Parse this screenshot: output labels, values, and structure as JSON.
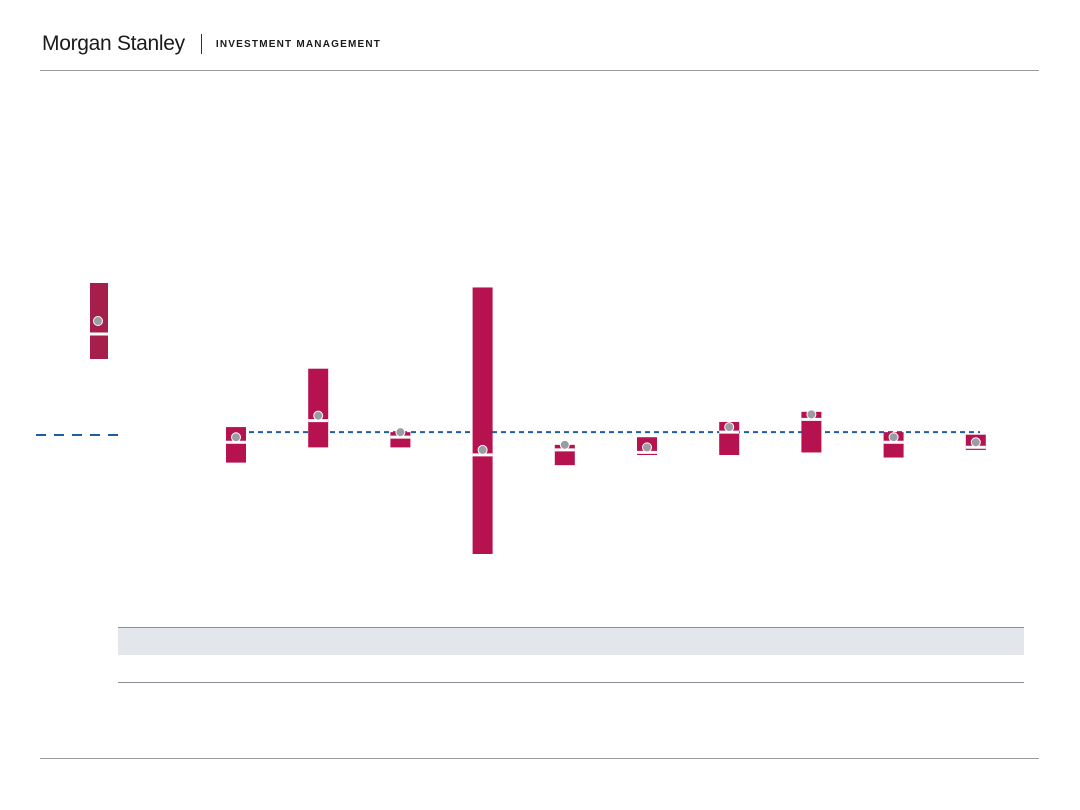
{
  "header": {
    "brand_name": "Morgan Stanley",
    "division": "INVESTMENT MANAGEMENT"
  },
  "colors": {
    "bar": "#b5124f",
    "legend_bar": "#a61f4a",
    "marker_fill": "#9a9da3",
    "marker_stroke": "#ffffff",
    "reference_line": "#1f5fa0"
  },
  "chart_data": {
    "type": "range-bar",
    "legend": {
      "range_bar": {
        "high": 88,
        "low": 58,
        "point": 73
      },
      "reference_line": true
    },
    "reference_value": 0,
    "ylim": [
      -48,
      56
    ],
    "points": [
      {
        "high": 2,
        "low": -12,
        "median": -2
      },
      {
        "high": 25,
        "low": -6,
        "median": 6.5
      },
      {
        "high": 0,
        "low": -6,
        "median": 0
      },
      {
        "high": 57,
        "low": -48,
        "median": -7
      },
      {
        "high": -5,
        "low": -13,
        "median": -5
      },
      {
        "high": -2,
        "low": -9,
        "median": -6
      },
      {
        "high": 4,
        "low": -9,
        "median": 2
      },
      {
        "high": 8,
        "low": -8,
        "median": 7
      },
      {
        "high": 0,
        "low": -10,
        "median": -2
      },
      {
        "high": -1,
        "low": -7,
        "median": -4
      }
    ]
  }
}
